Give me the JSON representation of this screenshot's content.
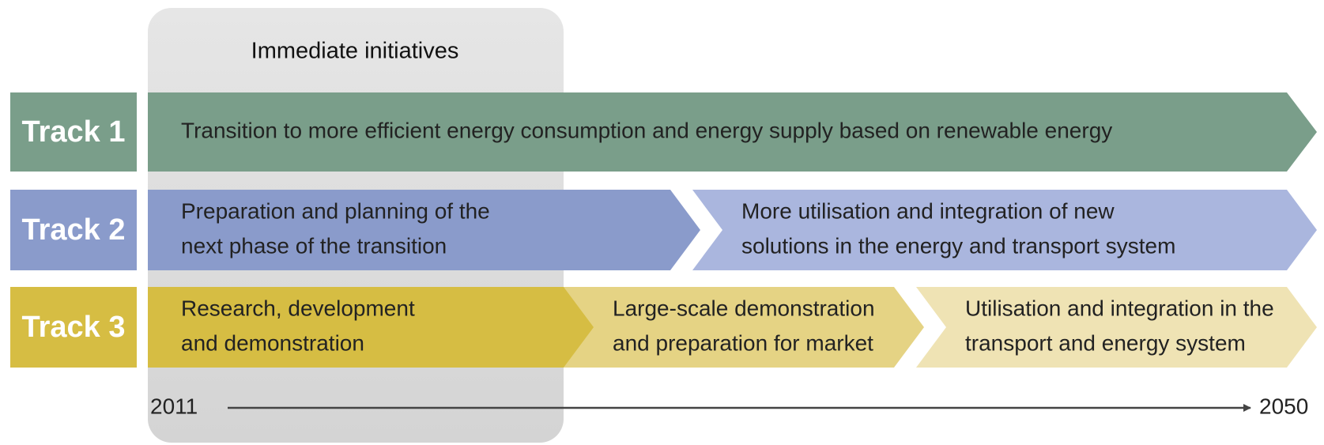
{
  "header": {
    "title": "Immediate initiatives"
  },
  "tracks": [
    {
      "label": "Track 1",
      "phases": [
        {
          "lines": [
            "Transition to more efficient energy consumption and energy supply based on renewable energy"
          ]
        }
      ]
    },
    {
      "label": "Track 2",
      "phases": [
        {
          "lines": [
            "Preparation and planning of the",
            "next phase of the transition"
          ]
        },
        {
          "lines": [
            "More utilisation and integration of new",
            "solutions in the energy and transport system"
          ]
        }
      ]
    },
    {
      "label": "Track 3",
      "phases": [
        {
          "lines": [
            "Research, development",
            "and demonstration"
          ]
        },
        {
          "lines": [
            "Large-scale demonstration",
            "and preparation for market"
          ]
        },
        {
          "lines": [
            "Utilisation and integration in the",
            "transport and energy system"
          ]
        }
      ]
    }
  ],
  "timeline": {
    "start": "2011",
    "end": "2050"
  }
}
